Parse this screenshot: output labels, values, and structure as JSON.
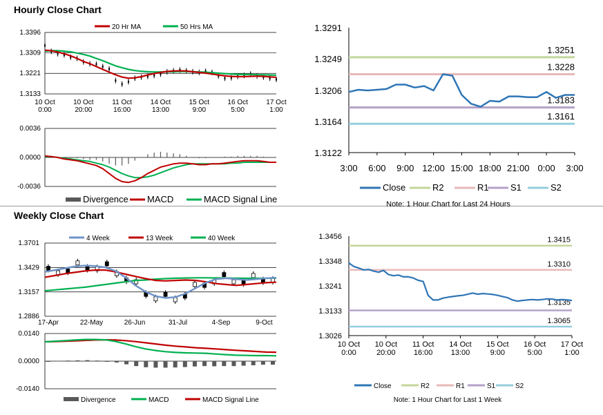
{
  "sections": {
    "hourly_title": "Hourly Close Chart",
    "weekly_title": "Weekly Close Chart"
  },
  "colors": {
    "close": "#2e75b6",
    "r2": "#c3d69b",
    "r1": "#e6b9b8",
    "s1": "#b3a2c7",
    "s2": "#93cddd",
    "ma_red": "#c00000",
    "ma_green": "#00b050",
    "ma_blue": "#6f93c8",
    "divergence": "#595959",
    "candle": "#000000",
    "grid": "#000000"
  },
  "chart_data": [
    {
      "id": "hourly_price",
      "type": "line",
      "title": "Hourly Close Chart",
      "x_labels": [
        "10 Oct\n0:00",
        "10 Oct\n20:00",
        "11 Oct\n16:00",
        "14 Oct\n13:00",
        "15 Oct\n9:00",
        "16 Oct\n5:00",
        "17 Oct\n1:00"
      ],
      "y_ticks": [
        1.3396,
        1.3309,
        1.3221,
        1.3133
      ],
      "ylim": [
        1.3133,
        1.3396
      ],
      "legend": [
        "20 Hr MA",
        "50 Hrs MA"
      ],
      "series": [
        {
          "name": "Close",
          "values": [
            1.334,
            1.3315,
            1.3305,
            1.33,
            1.329,
            1.3285,
            1.327,
            1.3262,
            1.326,
            1.325,
            1.324,
            1.319,
            1.3175,
            1.3185,
            1.32,
            1.3205,
            1.3208,
            1.3212,
            1.3218,
            1.3228,
            1.3232,
            1.3235,
            1.3232,
            1.3228,
            1.3225,
            1.323,
            1.3225,
            1.321,
            1.32,
            1.3202,
            1.3208,
            1.3212,
            1.3218,
            1.321,
            1.3205,
            1.32,
            1.3195
          ]
        },
        {
          "name": "20 Hr MA",
          "values": [
            1.332,
            1.3318,
            1.3312,
            1.3305,
            1.3296,
            1.3285,
            1.3272,
            1.3262,
            1.325,
            1.3238,
            1.3226,
            1.3215,
            1.3205,
            1.32,
            1.3202,
            1.3207,
            1.3214,
            1.322,
            1.3225,
            1.3229,
            1.3231,
            1.3232,
            1.3231,
            1.3228,
            1.3225,
            1.3222,
            1.3218,
            1.3214,
            1.321,
            1.3208,
            1.3207,
            1.3207,
            1.3208,
            1.3209,
            1.3208,
            1.3206,
            1.3204
          ]
        },
        {
          "name": "50 Hrs MA",
          "values": [
            1.3316,
            1.3318,
            1.3318,
            1.3316,
            1.3313,
            1.3308,
            1.3302,
            1.3295,
            1.3285,
            1.3275,
            1.3264,
            1.3253,
            1.3245,
            1.3238,
            1.3233,
            1.323,
            1.3228,
            1.3227,
            1.3227,
            1.3228,
            1.3228,
            1.3229,
            1.3229,
            1.3228,
            1.3227,
            1.3226,
            1.3224,
            1.3222,
            1.322,
            1.3218,
            1.3217,
            1.3216,
            1.3216,
            1.3215,
            1.3215,
            1.3214,
            1.3213
          ]
        }
      ]
    },
    {
      "id": "hourly_macd",
      "type": "line",
      "y_ticks": [
        "0.0036",
        "0.0000",
        "-0.0036"
      ],
      "ylim": [
        -0.0036,
        0.0036
      ],
      "legend": [
        "Divergence",
        "MACD",
        "MACD Signal Line"
      ],
      "series": [
        {
          "name": "MACD",
          "values": [
            0.0002,
            0.0001,
            0.0,
            -0.0002,
            -0.0003,
            -0.0004,
            -0.0006,
            -0.0008,
            -0.001,
            -0.0014,
            -0.002,
            -0.0026,
            -0.003,
            -0.0031,
            -0.0029,
            -0.0025,
            -0.002,
            -0.0016,
            -0.0012,
            -0.001,
            -0.0008,
            -0.0007,
            -0.0007,
            -0.0008,
            -0.0009,
            -0.0009,
            -0.0008,
            -0.0008,
            -0.0007,
            -0.0006,
            -0.0005,
            -0.0004,
            -0.0004,
            -0.0004,
            -0.0005,
            -0.0006,
            -0.0006
          ]
        },
        {
          "name": "MACD Signal Line",
          "values": [
            0.0001,
            0.0001,
            0.0,
            -0.0001,
            -0.0002,
            -0.0003,
            -0.0004,
            -0.0005,
            -0.0007,
            -0.0009,
            -0.0012,
            -0.0016,
            -0.002,
            -0.0023,
            -0.0025,
            -0.0025,
            -0.0024,
            -0.0022,
            -0.0019,
            -0.0016,
            -0.0013,
            -0.0011,
            -0.0009,
            -0.0008,
            -0.0008,
            -0.0008,
            -0.0008,
            -0.0008,
            -0.0008,
            -0.0007,
            -0.0007,
            -0.0006,
            -0.0006,
            -0.0006,
            -0.0006,
            -0.0006,
            -0.0006
          ]
        }
      ]
    },
    {
      "id": "hourly_levels",
      "type": "line",
      "x_labels": [
        "3:00",
        "6:00",
        "9:00",
        "12:00",
        "15:00",
        "18:00",
        "21:00",
        "0:00",
        "3:00"
      ],
      "y_ticks": [
        "1.3291",
        "1.3249",
        "1.3206",
        "1.3164",
        "1.3122"
      ],
      "ylim": [
        1.3122,
        1.3291
      ],
      "levels": [
        {
          "name": "R2",
          "value": 1.3251,
          "label": "1.3251"
        },
        {
          "name": "R1",
          "value": 1.3228,
          "label": "1.3228"
        },
        {
          "name": "S1",
          "value": 1.3183,
          "label": "1.3183"
        },
        {
          "name": "S2",
          "value": 1.3161,
          "label": "1.3161"
        }
      ],
      "legend": [
        "Close",
        "R2",
        "R1",
        "S1",
        "S2"
      ],
      "note": "Note: 1 Hour Chart for Last 24 Hours",
      "series": [
        {
          "name": "Close",
          "values": [
            1.3204,
            1.3207,
            1.3206,
            1.3207,
            1.3208,
            1.3214,
            1.3214,
            1.321,
            1.3212,
            1.3206,
            1.3228,
            1.3226,
            1.32,
            1.3188,
            1.3184,
            1.3192,
            1.3191,
            1.3198,
            1.3198,
            1.3197,
            1.3197,
            1.3204,
            1.3196,
            1.32,
            1.32
          ]
        }
      ]
    },
    {
      "id": "weekly_price",
      "type": "line",
      "title": "Weekly Close Chart",
      "x_labels": [
        "17-Apr",
        "22-May",
        "26-Jun",
        "31-Jul",
        "4-Sep",
        "9-Oct"
      ],
      "y_ticks": [
        "1.3701",
        "1.3429",
        "1.3157",
        "1.2886"
      ],
      "ylim": [
        1.2886,
        1.3701
      ],
      "legend": [
        "4 Week",
        "13 Week",
        "40 Week"
      ],
      "series": [
        {
          "name": "4 Week",
          "values": [
            1.338,
            1.34,
            1.342,
            1.344,
            1.345,
            1.3445,
            1.343,
            1.339,
            1.332,
            1.323,
            1.316,
            1.311,
            1.309,
            1.31,
            1.314,
            1.32,
            1.326,
            1.33,
            1.331,
            1.33,
            1.329,
            1.33,
            1.331,
            1.3315
          ]
        },
        {
          "name": "13 Week",
          "values": [
            1.332,
            1.334,
            1.336,
            1.3375,
            1.339,
            1.34,
            1.34,
            1.338,
            1.3355,
            1.333,
            1.3305,
            1.3285,
            1.328,
            1.3285,
            1.329,
            1.3285,
            1.327,
            1.325,
            1.324,
            1.323,
            1.324,
            1.325,
            1.326,
            1.3265
          ]
        },
        {
          "name": "40 Week",
          "values": [
            1.317,
            1.318,
            1.319,
            1.32,
            1.321,
            1.3225,
            1.324,
            1.3255,
            1.327,
            1.3285,
            1.329,
            1.33,
            1.3305,
            1.331,
            1.3312,
            1.3314,
            1.3314,
            1.3313,
            1.3311,
            1.331,
            1.3309,
            1.3309,
            1.3309,
            1.331
          ]
        }
      ]
    },
    {
      "id": "weekly_macd",
      "type": "line",
      "y_ticks": [
        "0.0140",
        "0.0000",
        "-0.0140"
      ],
      "ylim": [
        -0.014,
        0.014
      ],
      "legend": [
        "Divergence",
        "MACD",
        "MACD Signal Line"
      ],
      "series": [
        {
          "name": "MACD",
          "values": [
            0.0098,
            0.0101,
            0.0104,
            0.0107,
            0.011,
            0.011,
            0.0108,
            0.01,
            0.0088,
            0.0074,
            0.0062,
            0.0054,
            0.0048,
            0.0044,
            0.0042,
            0.0041,
            0.004,
            0.0036,
            0.0033,
            0.003,
            0.0029,
            0.0028,
            0.0028,
            0.0027
          ]
        },
        {
          "name": "MACD Signal Line",
          "values": [
            0.0098,
            0.0099,
            0.0101,
            0.0103,
            0.0105,
            0.0107,
            0.0108,
            0.0107,
            0.0104,
            0.0099,
            0.0093,
            0.0087,
            0.0081,
            0.0076,
            0.0072,
            0.0068,
            0.0065,
            0.0062,
            0.0058,
            0.0055,
            0.0052,
            0.0049,
            0.0046,
            0.0045
          ]
        }
      ]
    },
    {
      "id": "weekly_levels",
      "type": "line",
      "x_labels": [
        "10 Oct\n0:00",
        "10 Oct\n20:00",
        "11 Oct\n16:00",
        "14 Oct\n13:00",
        "15 Oct\n9:00",
        "16 Oct\n5:00",
        "17 Oct\n1:00"
      ],
      "y_ticks": [
        "1.3456",
        "1.3348",
        "1.3241",
        "1.3133",
        "1.3026"
      ],
      "ylim": [
        1.3026,
        1.3456
      ],
      "levels": [
        {
          "name": "R2",
          "value": 1.3415,
          "label": "1.3415"
        },
        {
          "name": "R1",
          "value": 1.331,
          "label": "1.3310"
        },
        {
          "name": "S1",
          "value": 1.3135,
          "label": "1.3135"
        },
        {
          "name": "S2",
          "value": 1.3065,
          "label": "1.3065"
        }
      ],
      "legend": [
        "Close",
        "R2",
        "R1",
        "S1",
        "S2"
      ],
      "note": "Note: 1 Hour Chart for Last 1 Week",
      "series": [
        {
          "name": "Close",
          "values": [
            1.334,
            1.3325,
            1.3318,
            1.331,
            1.3312,
            1.3305,
            1.33,
            1.3308,
            1.329,
            1.3285,
            1.3288,
            1.328,
            1.328,
            1.3275,
            1.3265,
            1.326,
            1.32,
            1.318,
            1.318,
            1.3188,
            1.3192,
            1.3195,
            1.3198,
            1.32,
            1.3205,
            1.321,
            1.3205,
            1.3208,
            1.3206,
            1.3204,
            1.32,
            1.3195,
            1.319,
            1.318,
            1.3175,
            1.3178,
            1.318,
            1.3182,
            1.318,
            1.3182,
            1.3185,
            1.3184,
            1.318,
            1.3182,
            1.318,
            1.3178
          ]
        }
      ]
    }
  ]
}
